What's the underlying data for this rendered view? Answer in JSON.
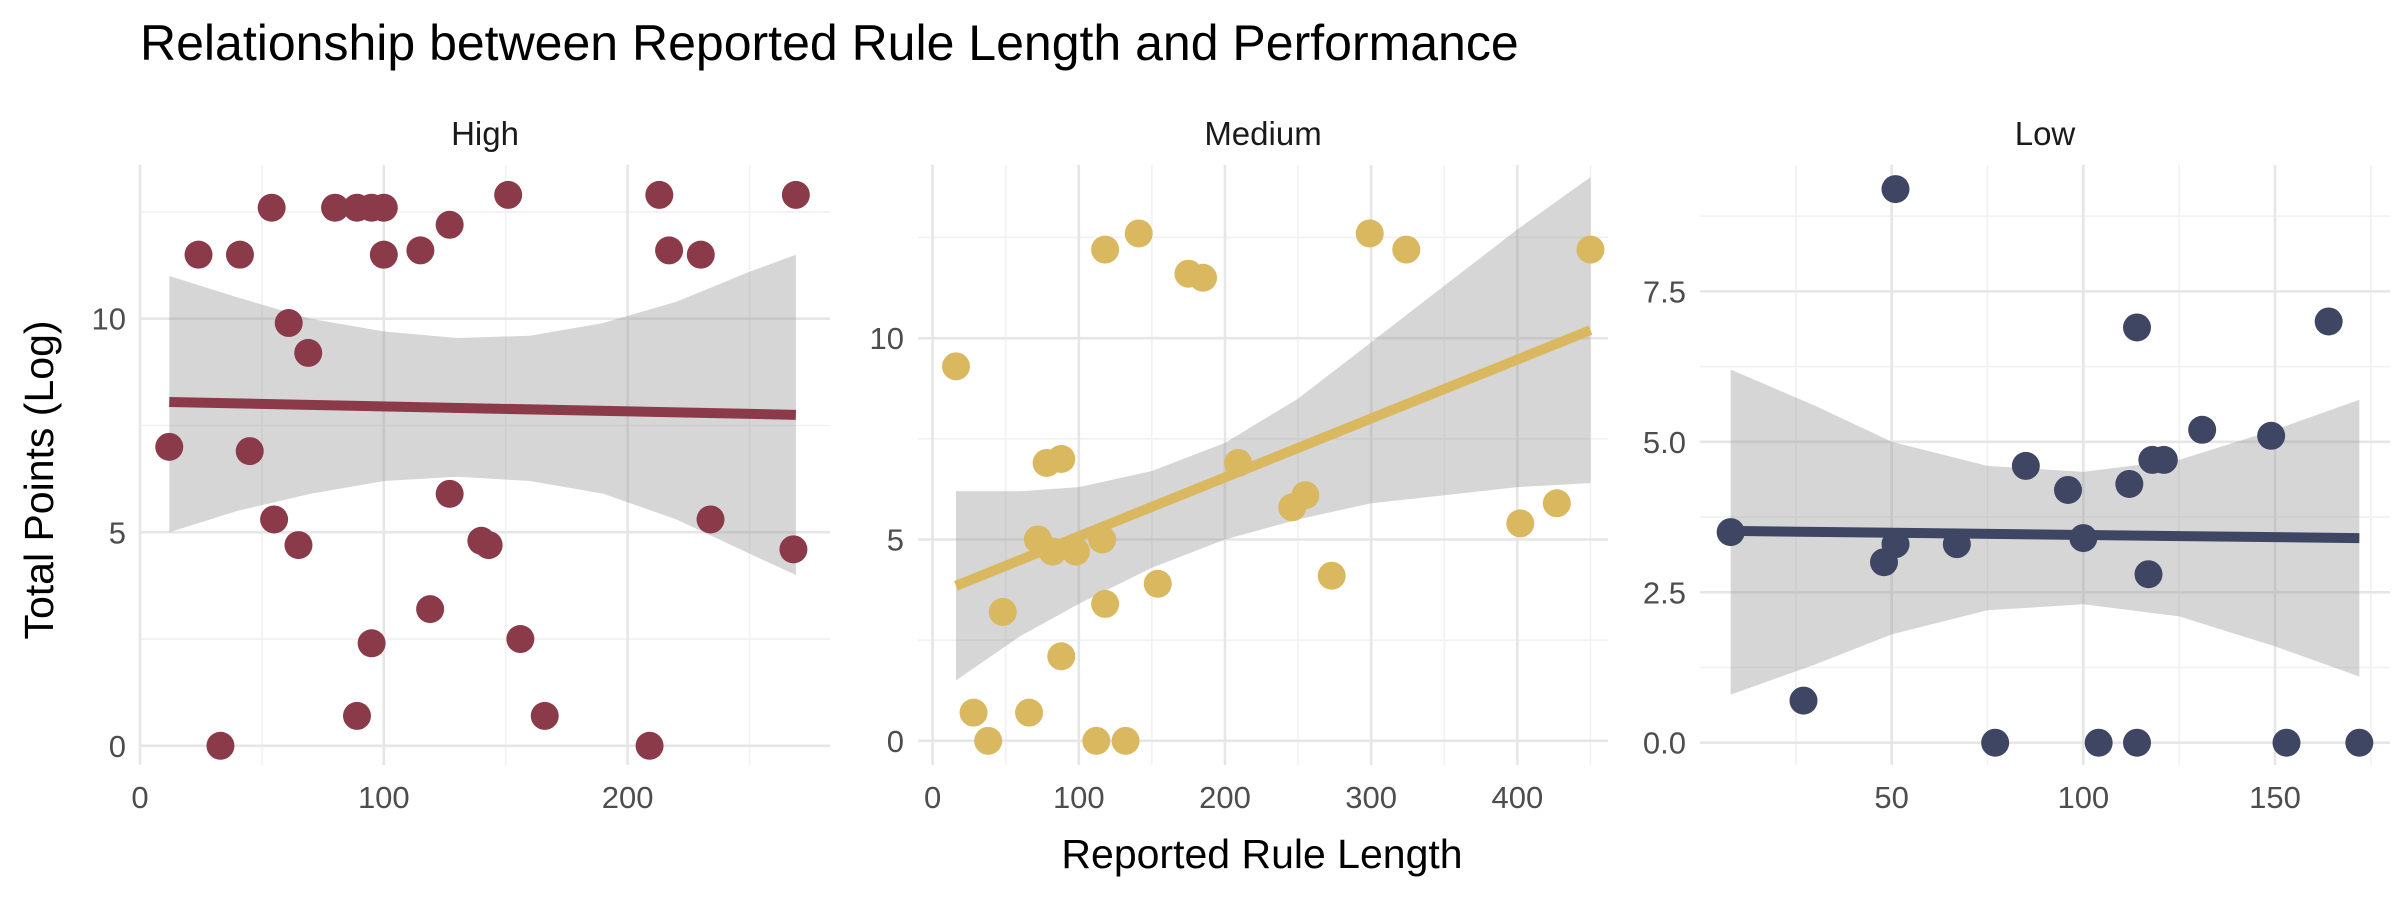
{
  "chart_data": {
    "type": "scatter",
    "title": "Relationship between Reported Rule Length and Performance",
    "xlabel": "Reported Rule Length",
    "ylabel": "Total Points (Log)",
    "grid": true,
    "legend": "none",
    "smoothing": "linear fit with grey confidence band",
    "panels": [
      {
        "name": "High",
        "color": "#8B3A4A",
        "xlim": [
          0,
          283
        ],
        "ylim": [
          -0.45,
          13.6
        ],
        "xticks": [
          0,
          100,
          200
        ],
        "xtick_labels": [
          "0",
          "100",
          "200"
        ],
        "yticks": [
          0,
          5,
          10
        ],
        "ytick_labels": [
          "0",
          "5",
          "10"
        ],
        "points": [
          [
            12,
            7.0
          ],
          [
            24,
            11.5
          ],
          [
            33,
            0.0
          ],
          [
            41,
            11.5
          ],
          [
            45,
            6.9
          ],
          [
            54,
            12.6
          ],
          [
            55,
            5.3
          ],
          [
            61,
            9.9
          ],
          [
            65,
            4.7
          ],
          [
            69,
            9.2
          ],
          [
            80,
            12.6
          ],
          [
            89,
            12.6
          ],
          [
            89,
            0.7
          ],
          [
            95,
            12.6
          ],
          [
            95,
            2.4
          ],
          [
            100,
            12.6
          ],
          [
            100,
            11.5
          ],
          [
            115,
            11.6
          ],
          [
            119,
            3.2
          ],
          [
            127,
            5.9
          ],
          [
            127,
            12.2
          ],
          [
            140,
            4.8
          ],
          [
            143,
            4.7
          ],
          [
            151,
            12.9
          ],
          [
            156,
            2.5
          ],
          [
            166,
            0.7
          ],
          [
            209,
            0.0
          ],
          [
            213,
            12.9
          ],
          [
            217,
            11.6
          ],
          [
            230,
            11.5
          ],
          [
            234,
            5.3
          ],
          [
            269,
            12.9
          ],
          [
            268,
            4.6
          ]
        ],
        "fit": {
          "x": [
            12,
            269
          ],
          "y": [
            8.05,
            7.75
          ]
        },
        "band": {
          "x": [
            12,
            40,
            70,
            100,
            130,
            160,
            190,
            220,
            250,
            269
          ],
          "lower": [
            5.0,
            5.5,
            5.9,
            6.2,
            6.3,
            6.2,
            5.9,
            5.3,
            4.5,
            4.0
          ],
          "upper": [
            11.0,
            10.5,
            10.0,
            9.7,
            9.55,
            9.6,
            9.9,
            10.4,
            11.1,
            11.5
          ]
        }
      },
      {
        "name": "Medium",
        "color": "#D9B85F",
        "xlim": [
          -10,
          462
        ],
        "ylim": [
          -0.6,
          14.3
        ],
        "xticks": [
          0,
          100,
          200,
          300,
          400
        ],
        "xtick_labels": [
          "0",
          "100",
          "200",
          "300",
          "400"
        ],
        "yticks": [
          0,
          5,
          10
        ],
        "ytick_labels": [
          "0",
          "5",
          "10"
        ],
        "points": [
          [
            16,
            9.3
          ],
          [
            28,
            0.7
          ],
          [
            38,
            0.0
          ],
          [
            48,
            3.2
          ],
          [
            66,
            0.7
          ],
          [
            72,
            5.0
          ],
          [
            78,
            6.9
          ],
          [
            82,
            4.7
          ],
          [
            88,
            7.0
          ],
          [
            88,
            2.1
          ],
          [
            98,
            4.7
          ],
          [
            112,
            0.0
          ],
          [
            116,
            5.0
          ],
          [
            118,
            3.4
          ],
          [
            118,
            12.2
          ],
          [
            132,
            0.0
          ],
          [
            141,
            12.6
          ],
          [
            154,
            3.9
          ],
          [
            175,
            11.6
          ],
          [
            185,
            11.5
          ],
          [
            209,
            6.9
          ],
          [
            246,
            5.8
          ],
          [
            255,
            6.1
          ],
          [
            273,
            4.1
          ],
          [
            299,
            12.6
          ],
          [
            324,
            12.2
          ],
          [
            402,
            5.4
          ],
          [
            427,
            5.9
          ],
          [
            450,
            12.2
          ]
        ],
        "fit": {
          "x": [
            16,
            450
          ],
          "y": [
            3.85,
            10.2
          ]
        },
        "band": {
          "x": [
            16,
            60,
            100,
            150,
            200,
            250,
            300,
            350,
            400,
            450
          ],
          "lower": [
            1.5,
            2.6,
            3.4,
            4.3,
            5.0,
            5.5,
            5.9,
            6.1,
            6.3,
            6.4
          ],
          "upper": [
            6.2,
            6.2,
            6.3,
            6.7,
            7.4,
            8.5,
            9.9,
            11.3,
            12.7,
            14.0
          ]
        }
      },
      {
        "name": "Low",
        "color": "#3F4663",
        "xlim": [
          0,
          180
        ],
        "ylim": [
          -0.37,
          9.6
        ],
        "xticks": [
          50,
          100,
          150
        ],
        "xtick_labels": [
          "50",
          "100",
          "150"
        ],
        "yticks": [
          0,
          2.5,
          5,
          7.5
        ],
        "ytick_labels": [
          "0.0",
          "2.5",
          "5.0",
          "7.5"
        ],
        "points": [
          [
            8,
            3.5
          ],
          [
            27,
            0.7
          ],
          [
            48,
            3.0
          ],
          [
            51,
            3.3
          ],
          [
            51,
            9.2
          ],
          [
            67,
            3.3
          ],
          [
            77,
            0.0
          ],
          [
            85,
            4.6
          ],
          [
            96,
            4.2
          ],
          [
            100,
            3.4
          ],
          [
            104,
            0.0
          ],
          [
            112,
            4.3
          ],
          [
            114,
            6.9
          ],
          [
            114,
            0.0
          ],
          [
            117,
            2.8
          ],
          [
            118,
            4.7
          ],
          [
            121,
            4.7
          ],
          [
            131,
            5.2
          ],
          [
            149,
            5.1
          ],
          [
            153,
            0.0
          ],
          [
            164,
            7.0
          ],
          [
            172,
            0.0
          ]
        ],
        "fit": {
          "x": [
            8,
            172
          ],
          "y": [
            3.52,
            3.4
          ]
        },
        "band": {
          "x": [
            8,
            30,
            50,
            75,
            100,
            125,
            150,
            172
          ],
          "lower": [
            0.8,
            1.3,
            1.8,
            2.2,
            2.3,
            2.1,
            1.6,
            1.1
          ],
          "upper": [
            6.2,
            5.6,
            5.0,
            4.6,
            4.5,
            4.7,
            5.2,
            5.7
          ]
        }
      }
    ]
  }
}
